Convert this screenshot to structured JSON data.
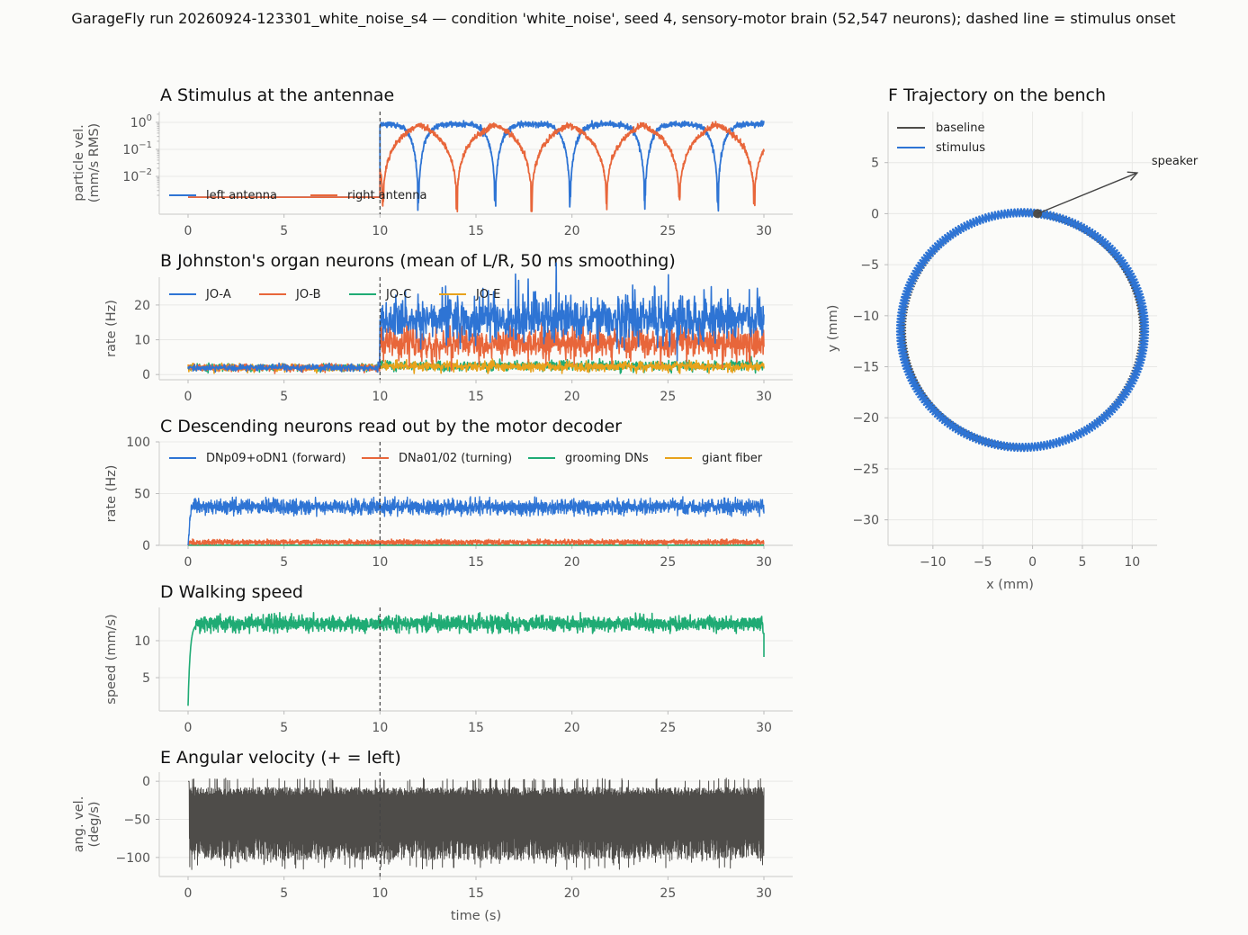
{
  "suptitle": "GarageFly run 20260924-123301_white_noise_s4 — condition 'white_noise', seed 4, sensory-motor brain (52,547 neurons); dashed line = stimulus onset",
  "colors": {
    "blue": "#2e74d4",
    "orange": "#e8663a",
    "green": "#1fab74",
    "gold": "#e8a21c",
    "dark": "#4e4c49",
    "arrow": "#444444"
  },
  "stimulus_onset_s": 10,
  "chart_data": [
    {
      "id": "A",
      "type": "line",
      "title": "A  Stimulus at the antennae",
      "ylabel": [
        "particle vel.",
        "(mm/s RMS)"
      ],
      "yscale": "log",
      "xlim": [
        -1.5,
        31.5
      ],
      "ylim": [
        0.0004,
        2.5
      ],
      "xticks": [
        0,
        5,
        10,
        15,
        20,
        25,
        30
      ],
      "xtick_labels": [
        "0",
        "5",
        "10",
        "15",
        "20",
        "25",
        "30"
      ],
      "yticks": [
        1,
        0.1,
        0.01
      ],
      "ytick_labels": [
        [
          "10",
          "0"
        ],
        [
          "10",
          "−1"
        ],
        [
          "10",
          "−2"
        ]
      ],
      "series": [
        {
          "name": "left antenna",
          "color": "#2e74d4",
          "baseline": 0.0017,
          "peak": 0.85,
          "dip_times": [
            12.0,
            16.0,
            19.9,
            23.8,
            27.6
          ]
        },
        {
          "name": "right antenna",
          "color": "#e8663a",
          "baseline": 0.0017,
          "peak": 0.85,
          "dip_times": [
            10.15,
            14.0,
            17.9,
            21.8,
            25.6,
            29.5
          ]
        }
      ],
      "legend": "upper-left, 2 columns"
    },
    {
      "id": "B",
      "type": "line",
      "title": "B  Johnston's organ neurons (mean of L/R, 50 ms smoothing)",
      "ylabel": [
        "rate (Hz)"
      ],
      "xlim": [
        -1.5,
        31.5
      ],
      "ylim": [
        -1.5,
        28
      ],
      "xticks": [
        0,
        5,
        10,
        15,
        20,
        25,
        30
      ],
      "xtick_labels": [
        "0",
        "5",
        "10",
        "15",
        "20",
        "25",
        "30"
      ],
      "yticks": [
        0,
        10,
        20
      ],
      "ytick_labels": [
        "0",
        "10",
        "20"
      ],
      "series": [
        {
          "name": "JO-A",
          "color": "#2e74d4",
          "baseline": 2,
          "stim_mean": 16,
          "max": 27
        },
        {
          "name": "JO-B",
          "color": "#e8663a",
          "baseline": 2,
          "stim_mean": 9,
          "max": 18
        },
        {
          "name": "JO-C",
          "color": "#1fab74",
          "baseline": 2,
          "stim_mean": 2.5,
          "max": 5
        },
        {
          "name": "JO-E",
          "color": "#e8a21c",
          "baseline": 2,
          "stim_mean": 2.3,
          "max": 4
        }
      ],
      "legend": "top, 4 columns"
    },
    {
      "id": "C",
      "type": "line",
      "title": "C  Descending neurons read out by the motor decoder",
      "ylabel": [
        "rate (Hz)"
      ],
      "xlim": [
        -1.5,
        31.5
      ],
      "ylim": [
        0,
        100
      ],
      "xticks": [
        0,
        5,
        10,
        15,
        20,
        25,
        30
      ],
      "xtick_labels": [
        "0",
        "5",
        "10",
        "15",
        "20",
        "25",
        "30"
      ],
      "yticks": [
        0,
        50,
        100
      ],
      "ytick_labels": [
        "0",
        "50",
        "100"
      ],
      "series": [
        {
          "name": "DNp09+oDN1 (forward)",
          "color": "#2e74d4",
          "mean": 37,
          "range": [
            28,
            47
          ]
        },
        {
          "name": "DNa01/02 (turning)",
          "color": "#e8663a",
          "mean": 3,
          "range": [
            1,
            6
          ]
        },
        {
          "name": "grooming DNs",
          "color": "#1fab74",
          "mean": 0,
          "range": [
            0,
            0.5
          ]
        },
        {
          "name": "giant fiber",
          "color": "#e8a21c",
          "mean": 0,
          "range": [
            0,
            0.5
          ]
        }
      ],
      "legend": "top, 4 columns"
    },
    {
      "id": "D",
      "type": "line",
      "title": "D  Walking speed",
      "ylabel": [
        "speed (mm/s)"
      ],
      "xlim": [
        -1.5,
        31.5
      ],
      "ylim": [
        0.5,
        14.5
      ],
      "xticks": [
        0,
        5,
        10,
        15,
        20,
        25,
        30
      ],
      "xtick_labels": [
        "0",
        "5",
        "10",
        "15",
        "20",
        "25",
        "30"
      ],
      "yticks": [
        5,
        10
      ],
      "ytick_labels": [
        "5",
        "10"
      ],
      "series": [
        {
          "name": "",
          "color": "#1fab74",
          "start": 1.2,
          "mean": 12.3,
          "range": [
            11,
            13.8
          ],
          "end": 7.8
        }
      ]
    },
    {
      "id": "E",
      "type": "line",
      "title": "E  Angular velocity (+ = left)",
      "ylabel": [
        "ang. vel.",
        "(deg/s)"
      ],
      "xlabel": "time (s)",
      "xlim": [
        -1.5,
        31.5
      ],
      "ylim": [
        -125,
        12
      ],
      "xticks": [
        0,
        5,
        10,
        15,
        20,
        25,
        30
      ],
      "xtick_labels": [
        "0",
        "5",
        "10",
        "15",
        "20",
        "25",
        "30"
      ],
      "yticks": [
        0,
        -50,
        -100
      ],
      "ytick_labels": [
        "0",
        "−50",
        "−100"
      ],
      "series": [
        {
          "name": "",
          "color": "#4e4c49",
          "mean": -45,
          "range": [
            -118,
            8
          ]
        }
      ]
    },
    {
      "id": "F",
      "type": "line",
      "title": "F  Trajectory on the bench",
      "xlabel": "x (mm)",
      "ylabel": [
        "y (mm)"
      ],
      "xlim": [
        -14.5,
        12.5
      ],
      "ylim": [
        -32.5,
        10
      ],
      "xticks": [
        -10,
        -5,
        0,
        5,
        10
      ],
      "xtick_labels": [
        "−10",
        "−5",
        "0",
        "5",
        "10"
      ],
      "yticks": [
        5,
        0,
        -5,
        -10,
        -15,
        -20,
        -25,
        -30
      ],
      "ytick_labels": [
        "5",
        "0",
        "−5",
        "−10",
        "−15",
        "−20",
        "−25",
        "−30"
      ],
      "circle": {
        "center": [
          -1,
          -11.4
        ],
        "radius": [
          12,
          11.5
        ]
      },
      "start": [
        0.5,
        0
      ],
      "series": [
        {
          "name": "baseline",
          "color": "#4e4c49"
        },
        {
          "name": "stimulus",
          "color": "#2e74d4"
        }
      ],
      "annotation": {
        "text": "speaker",
        "from": [
          0.5,
          0
        ],
        "to": [
          10.5,
          4
        ]
      },
      "legend": "upper-left"
    }
  ]
}
